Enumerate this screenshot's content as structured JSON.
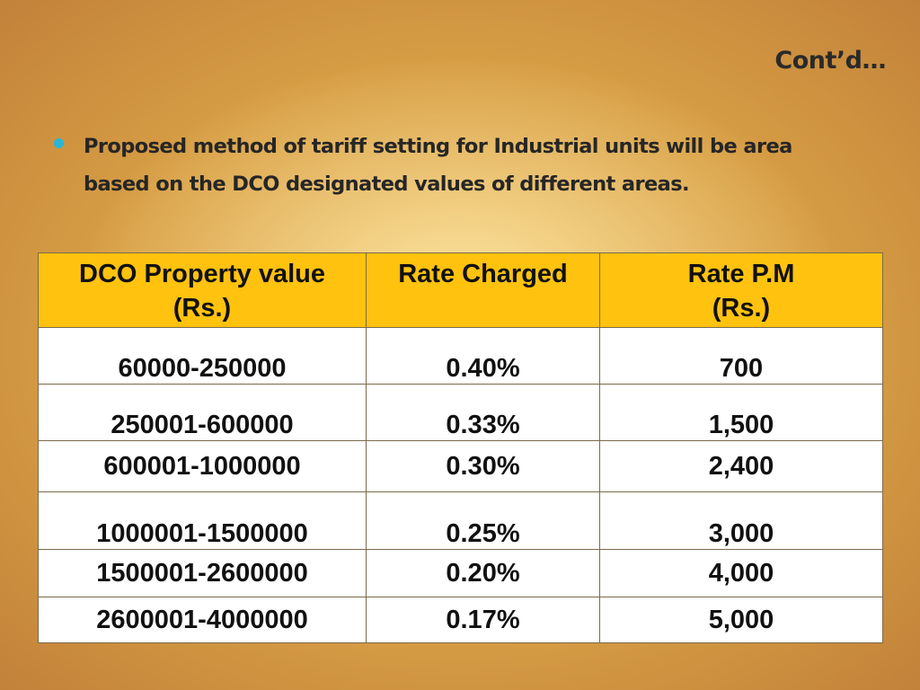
{
  "slide": {
    "title": "Cont’d…",
    "bullet": "Proposed method of tariff setting  for Industrial  units   will be  area based on the DCO designated values of different areas."
  },
  "table": {
    "headers": [
      {
        "line1": "DCO Property value",
        "line2": "(Rs.)"
      },
      {
        "line1": "Rate Charged",
        "line2": ""
      },
      {
        "line1": "Rate P.M",
        "line2": "(Rs.)"
      }
    ],
    "rows": [
      {
        "range": "60000-250000",
        "rate": "0.40%",
        "pm": "700"
      },
      {
        "range": "250001-600000",
        "rate": "0.33%",
        "pm": "1,500"
      },
      {
        "range": "600001-1000000",
        "rate": "0.30%",
        "pm": "2,400"
      },
      {
        "range": "1000001-1500000",
        "rate": "0.25%",
        "pm": "3,000"
      },
      {
        "range": "1500001-2600000",
        "rate": "0.20%",
        "pm": "4,000"
      },
      {
        "range": "2600001-4000000",
        "rate": "0.17%",
        "pm": "5,000"
      }
    ]
  },
  "colors": {
    "header_bg": "#ffc20e",
    "bullet": "#29b6d6",
    "cell_bg": "#ffffff"
  }
}
